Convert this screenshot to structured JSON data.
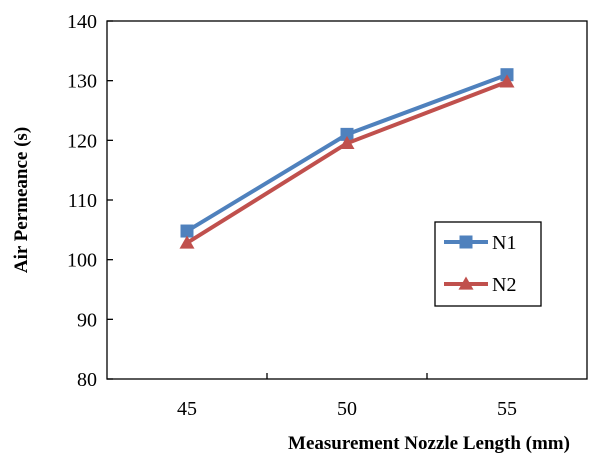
{
  "chart_data": {
    "type": "line",
    "title": "",
    "xlabel": "Measurement Nozzle Length (mm)",
    "ylabel": "Air Permeance (s)",
    "categories": [
      "45",
      "50",
      "55"
    ],
    "x": [
      45,
      50,
      55
    ],
    "ylim": [
      80,
      140
    ],
    "yticks": [
      "80",
      "90",
      "100",
      "110",
      "120",
      "130",
      "140"
    ],
    "grid": false,
    "legend_position": "right",
    "series": [
      {
        "name": "N1",
        "values": [
          104.8,
          121.0,
          131.0
        ],
        "color": "#4F81BD",
        "marker": "square"
      },
      {
        "name": "N2",
        "values": [
          102.8,
          119.5,
          129.8
        ],
        "color": "#C0504D",
        "marker": "triangle"
      }
    ]
  }
}
